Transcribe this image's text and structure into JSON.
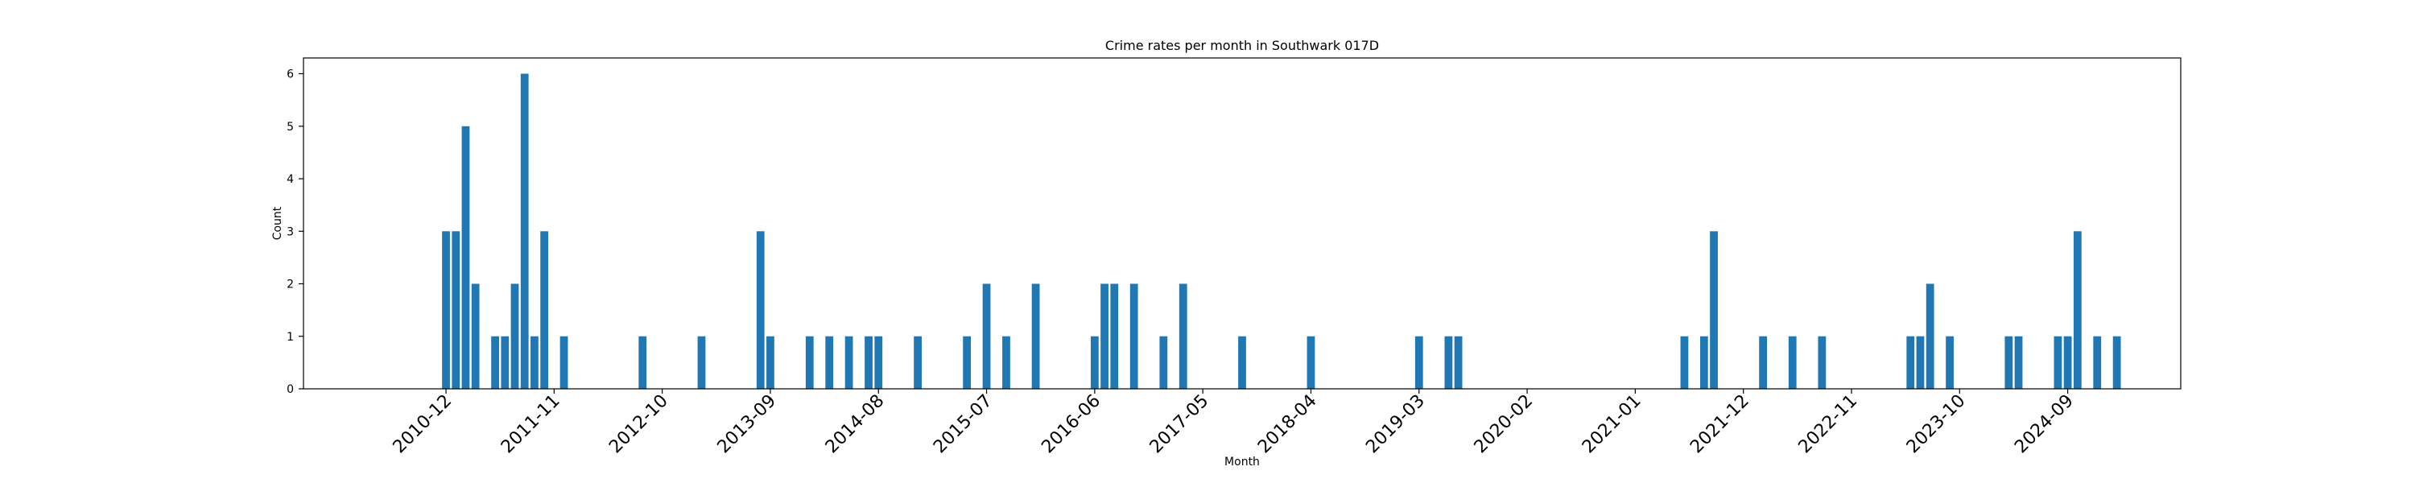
{
  "chart_data": {
    "type": "bar",
    "title": "Crime rates per month in Southwark 017D",
    "xlabel": "Month",
    "ylabel": "Count",
    "ylim": [
      0,
      6.3
    ],
    "yticks": [
      0,
      1,
      2,
      3,
      4,
      5,
      6
    ],
    "xlim": [
      "2009-10",
      "2025-08"
    ],
    "xticks": [
      "2010-12",
      "2011-11",
      "2012-10",
      "2013-09",
      "2014-08",
      "2015-07",
      "2016-06",
      "2017-05",
      "2018-04",
      "2019-03",
      "2020-02",
      "2021-01",
      "2021-12",
      "2022-11",
      "2023-10",
      "2024-09"
    ],
    "bar_color": "#1f77b4",
    "series": [
      {
        "x": [
          "2010-12",
          "2011-01",
          "2011-02",
          "2011-03",
          "2011-05",
          "2011-06",
          "2011-07",
          "2011-08",
          "2011-09",
          "2011-10",
          "2011-12",
          "2012-08",
          "2013-02",
          "2013-08",
          "2013-09",
          "2014-01",
          "2014-03",
          "2014-05",
          "2014-07",
          "2014-08",
          "2014-12",
          "2015-05",
          "2015-07",
          "2015-09",
          "2015-12",
          "2016-06",
          "2016-07",
          "2016-08",
          "2016-10",
          "2017-01",
          "2017-03",
          "2017-09",
          "2018-04",
          "2019-03",
          "2019-06",
          "2019-07",
          "2021-06",
          "2021-08",
          "2021-09",
          "2022-02",
          "2022-05",
          "2022-08",
          "2023-05",
          "2023-06",
          "2023-07",
          "2023-09",
          "2024-03",
          "2024-04",
          "2024-08",
          "2024-09",
          "2024-10",
          "2024-12",
          "2025-02"
        ],
        "values": [
          3,
          3,
          5,
          2,
          1,
          1,
          2,
          6,
          1,
          3,
          1,
          1,
          1,
          3,
          1,
          1,
          1,
          1,
          1,
          1,
          1,
          1,
          2,
          1,
          2,
          1,
          2,
          2,
          2,
          1,
          2,
          1,
          1,
          1,
          1,
          1,
          1,
          1,
          3,
          1,
          1,
          1,
          1,
          1,
          2,
          1,
          1,
          1,
          1,
          1,
          3,
          1,
          1
        ]
      }
    ],
    "grid": false,
    "legend": "none"
  }
}
